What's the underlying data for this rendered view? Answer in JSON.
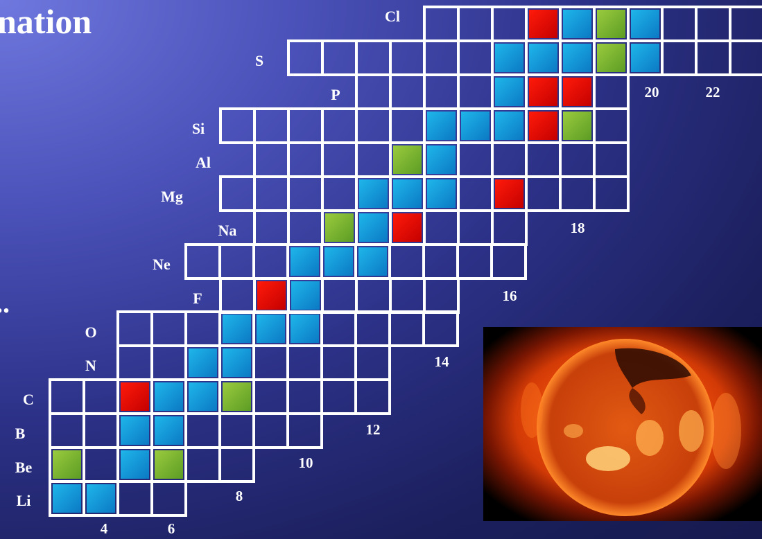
{
  "title_fragment": "nation",
  "dots": "..",
  "colors": {
    "fill_red": "#e00000",
    "fill_blue": "#00a0e0",
    "fill_green": "#7ab82c",
    "grid": "#ffffff"
  },
  "elements": [
    "Li",
    "Be",
    "B",
    "C",
    "N",
    "O",
    "F",
    "Ne",
    "Na",
    "Mg",
    "Al",
    "Si",
    "P",
    "S",
    "Cl"
  ],
  "neutron_labels": [
    "4",
    "6",
    "8",
    "10",
    "12",
    "14",
    "16",
    "18",
    "20",
    "22"
  ],
  "sun_image": "solar-xray-image"
}
